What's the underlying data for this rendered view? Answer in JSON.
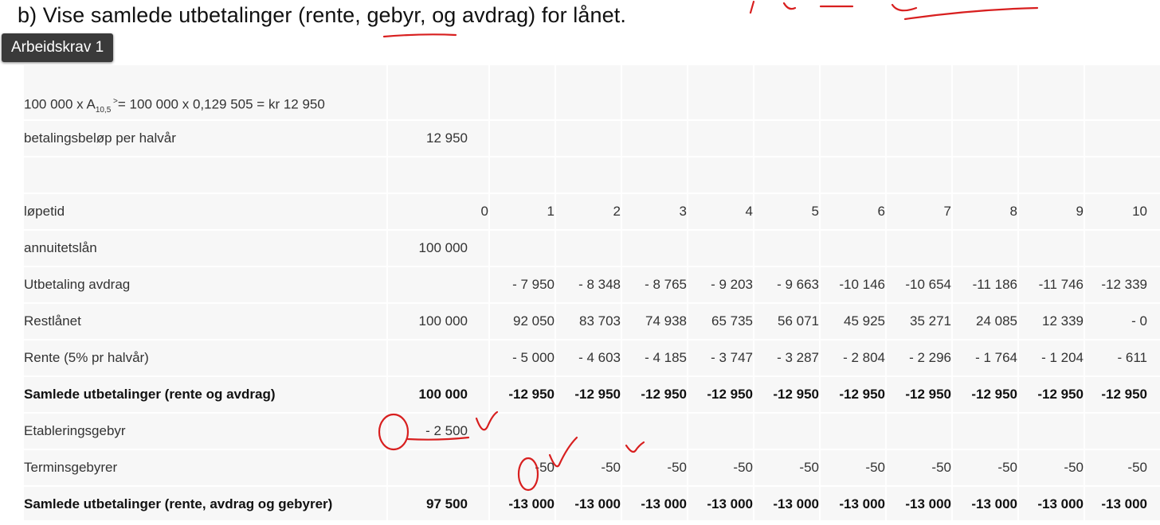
{
  "heading": "b) Vise samlede utbetalinger (rente, gebyr, og avdrag) for lånet.",
  "badge": "Arbeidskrav 1",
  "formula": {
    "prefix": "100 000  x A",
    "sub": "10,5",
    "arrow": " ˃",
    "rest": "= 100 000 x 0,129 505 = kr 12 950"
  },
  "payment_row": {
    "label": "betalingsbeløp per halvår",
    "value": "12 950"
  },
  "periods": {
    "label": "løpetid",
    "values": [
      "0",
      "1",
      "2",
      "3",
      "4",
      "5",
      "6",
      "7",
      "8",
      "9",
      "10"
    ]
  },
  "loan_row": {
    "label": "annuitetslån",
    "value": "100 000"
  },
  "rows": [
    {
      "label": "Utbetaling avdrag",
      "bold": false,
      "c0": "",
      "values": [
        "- 7 950",
        "- 8 348",
        "- 8 765",
        "- 9 203",
        "- 9 663",
        "-10 146",
        "-10 654",
        "-11 186",
        "-11 746",
        "-12 339"
      ]
    },
    {
      "label": "Restlånet",
      "bold": false,
      "c0": "100 000",
      "values": [
        "92 050",
        "83 703",
        "74 938",
        "65 735",
        "56 071",
        "45 925",
        "35 271",
        "24 085",
        "12 339",
        "- 0"
      ]
    },
    {
      "label": "Rente (5% pr halvår)",
      "bold": false,
      "c0": "",
      "values": [
        "- 5 000",
        "- 4 603",
        "- 4 185",
        "- 3 747",
        "- 3 287",
        "- 2 804",
        "- 2 296",
        "- 1 764",
        "- 1 204",
        "- 611"
      ]
    },
    {
      "label": "Samlede utbetalinger (rente og avdrag)",
      "bold": true,
      "c0": "100 000",
      "values": [
        "-12 950",
        "-12 950",
        "-12 950",
        "-12 950",
        "-12 950",
        "-12 950",
        "-12 950",
        "-12 950",
        "-12 950",
        "-12 950"
      ]
    },
    {
      "label": "Etableringsgebyr",
      "bold": false,
      "c0": "- 2 500",
      "values": []
    },
    {
      "label": "Terminsgebyrer",
      "bold": false,
      "c0": "",
      "values": [
        "-50",
        "-50",
        "-50",
        "-50",
        "-50",
        "-50",
        "-50",
        "-50",
        "-50",
        "-50"
      ]
    },
    {
      "label": "Samlede utbetalinger (rente, avdrag og gebyrer)",
      "bold": true,
      "c0": "97 500",
      "values": [
        "-13 000",
        "-13 000",
        "-13 000",
        "-13 000",
        "-13 000",
        "-13 000",
        "-13 000",
        "-13 000",
        "-13 000",
        "-13 000"
      ]
    }
  ],
  "colors": {
    "annotation": "#d81f1f",
    "badge_bg": "#3a3a3a",
    "sheet_bg": "#f7f7f7"
  }
}
